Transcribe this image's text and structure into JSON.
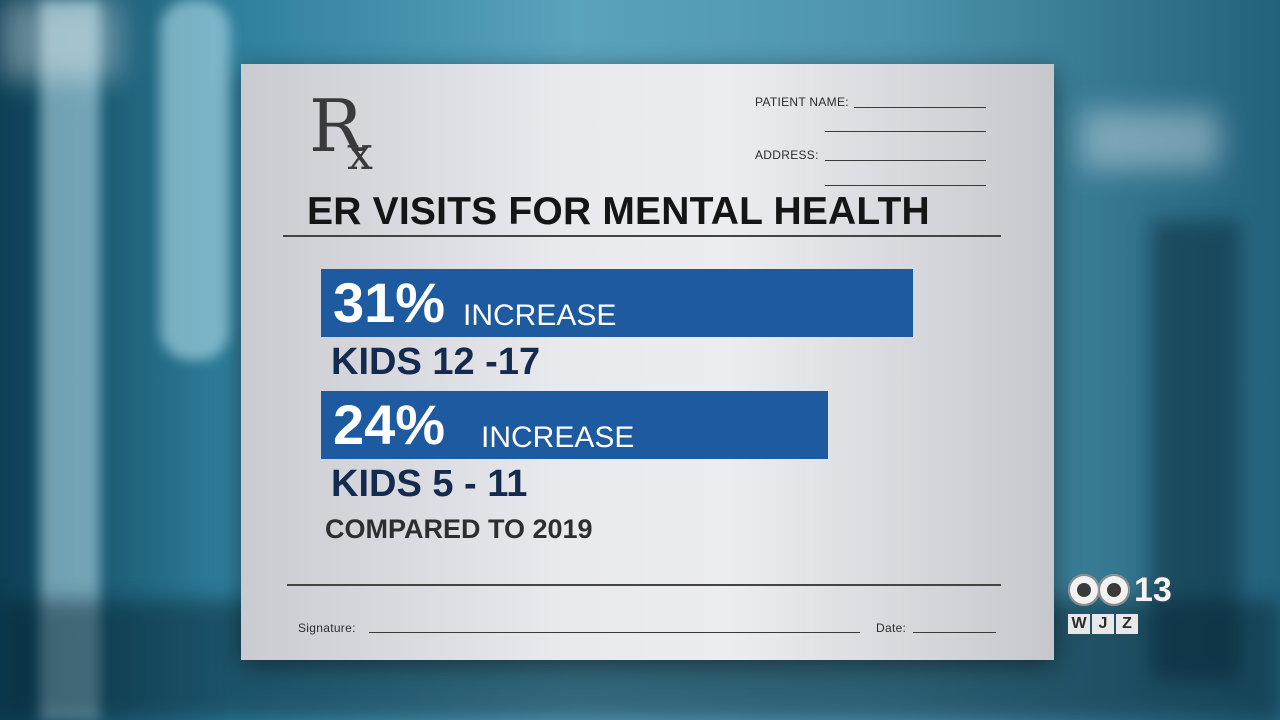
{
  "rx_symbol": {
    "r": "R",
    "x": "x"
  },
  "fields": {
    "patient_name_label": "PATIENT NAME:",
    "address_label": "ADDRESS:",
    "signature_label": "Signature:",
    "date_label": "Date:"
  },
  "title": "ER VISITS FOR MENTAL HEALTH",
  "stats": [
    {
      "percent": "31%",
      "label": "INCREASE",
      "group": "KIDS 12 -17",
      "value": 31
    },
    {
      "percent": "24%",
      "label": "INCREASE",
      "group": "KIDS 5 - 11",
      "value": 24
    }
  ],
  "footnote": "COMPARED TO 2019",
  "logo": {
    "number": "13",
    "call_letters": [
      "W",
      "J",
      "Z"
    ]
  },
  "colors": {
    "bar": "#1d5aa0",
    "subtitle": "#142a4f"
  }
}
